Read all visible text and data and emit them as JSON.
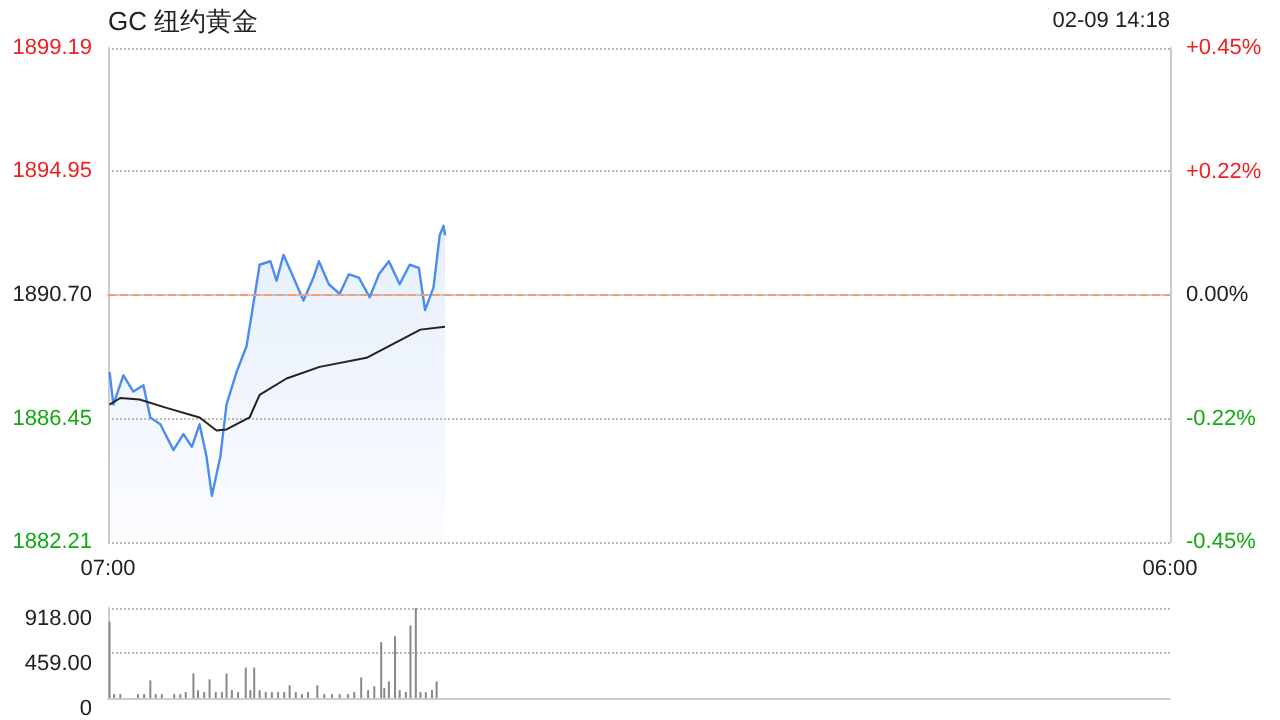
{
  "chart_data": [
    {
      "type": "line",
      "title": "GC 纽约黄金",
      "annotations": [
        "02-09 14:18"
      ],
      "marker": "none",
      "grid": "y",
      "xlim": [
        "--02-09T07:00",
        "--02-10T06:00"
      ],
      "xticks": [
        {
          "value": "--02-09T07:00",
          "label": "07:00"
        },
        {
          "value": "--02-10T06:00",
          "label": "06:00"
        }
      ],
      "ylim": [
        1882.21,
        1899.19
      ],
      "yticks": [
        {
          "value": 1882.21,
          "label": "1882.21"
        },
        {
          "value": 1886.45,
          "label": "1886.45"
        },
        {
          "value": 1890.7,
          "label": "1890.70"
        },
        {
          "value": 1894.95,
          "label": "1894.95"
        },
        {
          "value": 1899.19,
          "label": "1899.19"
        }
      ],
      "y2lim": [
        -0.45,
        0.45
      ],
      "y2ticks": [
        {
          "value": -0.45,
          "label": "-0.45%"
        },
        {
          "value": -0.225,
          "label": "-0.22%"
        },
        {
          "value": 0,
          "label": "0.00%"
        },
        {
          "value": 0.225,
          "label": "+0.22%"
        },
        {
          "value": 0.45,
          "label": "+0.45%"
        }
      ],
      "ref_lines": [
        {
          "axis": "y",
          "value": 1890.7,
          "color": "#f0a070",
          "line_style": "dashed"
        }
      ],
      "series": [
        {
          "type": "area",
          "color": "#4a8cf0",
          "x": [
            "--02-09T07:02",
            "--02-09T07:07",
            "--02-09T07:20",
            "--02-09T07:33",
            "--02-09T07:46",
            "--02-09T07:55",
            "--02-09T08:08",
            "--02-09T08:25",
            "--02-09T08:38",
            "--02-09T08:49",
            "--02-09T08:59",
            "--02-09T09:08",
            "--02-09T09:15",
            "--02-09T09:26",
            "--02-09T09:34",
            "--02-09T09:47",
            "--02-09T10:00",
            "--02-09T10:11",
            "--02-09T10:17",
            "--02-09T10:31",
            "--02-09T10:39",
            "--02-09T10:48",
            "--02-09T11:01",
            "--02-09T11:14",
            "--02-09T11:27",
            "--02-09T11:34",
            "--02-09T11:47",
            "--02-09T12:01",
            "--02-09T12:13",
            "--02-09T12:26",
            "--02-09T12:40",
            "--02-09T12:52",
            "--02-09T13:05",
            "--02-09T13:19",
            "--02-09T13:32",
            "--02-09T13:44",
            "--02-09T13:52",
            "--02-09T14:03",
            "--02-09T14:11",
            "--02-09T14:16",
            "--02-09T14:18"
          ],
          "values": [
            1888.05,
            1886.93,
            1887.94,
            1887.38,
            1887.6,
            1886.49,
            1886.26,
            1885.37,
            1885.92,
            1885.48,
            1886.26,
            1885.15,
            1883.8,
            1885.15,
            1886.93,
            1888.05,
            1888.94,
            1890.74,
            1891.74,
            1891.86,
            1891.19,
            1892.08,
            1891.3,
            1890.51,
            1891.3,
            1891.86,
            1891.07,
            1890.74,
            1891.41,
            1891.3,
            1890.62,
            1891.41,
            1891.86,
            1891.07,
            1891.74,
            1891.63,
            1890.18,
            1890.96,
            1892.75,
            1893.08,
            1892.75
          ]
        },
        {
          "type": "line",
          "color": "#222222",
          "x": [
            "--02-09T07:02",
            "--02-09T07:16",
            "--02-09T07:41",
            "--02-09T08:16",
            "--02-09T08:59",
            "--02-09T09:21",
            "--02-09T09:34",
            "--02-09T10:04",
            "--02-09T10:17",
            "--02-09T10:52",
            "--02-09T11:35",
            "--02-09T12:36",
            "--02-09T13:02",
            "--02-09T13:46",
            "--02-09T14:18"
          ],
          "values": [
            1886.93,
            1887.16,
            1887.11,
            1886.82,
            1886.49,
            1886.04,
            1886.08,
            1886.49,
            1887.27,
            1887.83,
            1888.23,
            1888.54,
            1888.9,
            1889.51,
            1889.61
          ]
        }
      ]
    },
    {
      "type": "bar",
      "tick_labels": "y",
      "grid": "y",
      "xlim": [
        "--02-09T07:00",
        "--02-10T06:00"
      ],
      "ylim": [
        0,
        918
      ],
      "yticks": [
        0,
        {
          "value": 459,
          "label": "459.00"
        },
        {
          "value": 918,
          "label": "918.00"
        }
      ],
      "series": [
        {
          "color": "#888888",
          "x": [
            "--02-09T07:02",
            "--02-09T07:08",
            "--02-09T07:16",
            "--02-09T07:23",
            "--02-09T07:31",
            "--02-09T07:39",
            "--02-09T07:47",
            "--02-09T07:55",
            "--02-09T08:02",
            "--02-09T08:10",
            "--02-09T08:18",
            "--02-09T08:26",
            "--02-09T08:34",
            "--02-09T08:41",
            "--02-09T08:51",
            "--02-09T08:57",
            "--02-09T09:05",
            "--02-09T09:12",
            "--02-09T09:20",
            "--02-09T09:28",
            "--02-09T09:34",
            "--02-09T09:41",
            "--02-09T09:49",
            "--02-09T09:59",
            "--02-09T10:05",
            "--02-09T10:10",
            "--02-09T10:17",
            "--02-09T10:25",
            "--02-09T10:33",
            "--02-09T10:41",
            "--02-09T10:49",
            "--02-09T10:56",
            "--02-09T11:04",
            "--02-09T11:12",
            "--02-09T11:20",
            "--02-09T11:32",
            "--02-09T11:41",
            "--02-09T11:51",
            "--02-09T12:01",
            "--02-09T12:12",
            "--02-09T12:20",
            "--02-09T12:29",
            "--02-09T12:38",
            "--02-09T12:46",
            "--02-09T12:55",
            "--02-09T12:59",
            "--02-09T13:05",
            "--02-09T13:13",
            "--02-09T13:19",
            "--02-09T13:27",
            "--02-09T13:33",
            "--02-09T13:40",
            "--02-09T13:46",
            "--02-09T13:53",
            "--02-09T14:01",
            "--02-09T14:07"
          ],
          "values": [
            780,
            40,
            40,
            null,
            null,
            40,
            40,
            180,
            40,
            40,
            null,
            40,
            40,
            60,
            250,
            80,
            60,
            190,
            60,
            60,
            250,
            80,
            60,
            310,
            80,
            310,
            80,
            60,
            60,
            60,
            60,
            130,
            60,
            40,
            60,
            130,
            40,
            40,
            40,
            40,
            60,
            210,
            80,
            120,
            570,
            100,
            170,
            630,
            80,
            60,
            740,
            918,
            60,
            60,
            80,
            170
          ]
        }
      ]
    }
  ]
}
